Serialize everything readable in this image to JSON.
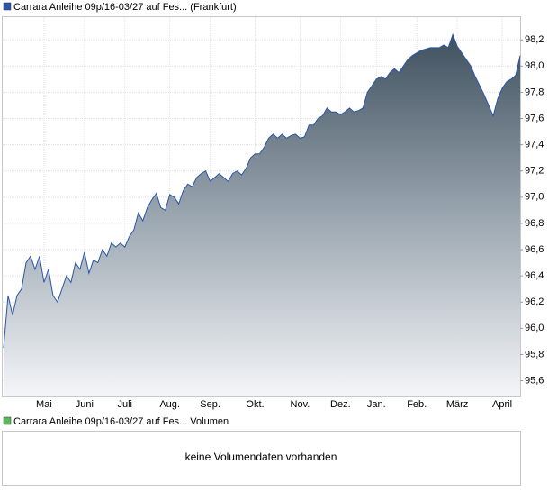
{
  "chart_data": {
    "type": "area",
    "series": [
      {
        "name": "Carrara Anleihe 09p/16-03/27 auf Fes... (Frankfurt)",
        "color": "#2a55a8",
        "values": [
          95.85,
          96.25,
          96.1,
          96.25,
          96.3,
          96.5,
          96.55,
          96.45,
          96.55,
          96.35,
          96.45,
          96.25,
          96.2,
          96.3,
          96.4,
          96.35,
          96.5,
          96.45,
          96.58,
          96.42,
          96.52,
          96.5,
          96.6,
          96.55,
          96.65,
          96.62,
          96.65,
          96.62,
          96.7,
          96.75,
          96.88,
          96.82,
          96.92,
          96.98,
          97.03,
          96.92,
          96.9,
          97.02,
          97.0,
          96.95,
          97.05,
          97.1,
          97.08,
          97.15,
          97.18,
          97.2,
          97.12,
          97.15,
          97.18,
          97.15,
          97.12,
          97.18,
          97.2,
          97.17,
          97.22,
          97.3,
          97.33,
          97.33,
          97.38,
          97.45,
          97.48,
          97.45,
          97.48,
          97.45,
          97.47,
          97.48,
          97.45,
          97.46,
          97.55,
          97.55,
          97.6,
          97.62,
          97.68,
          97.65,
          97.65,
          97.63,
          97.65,
          97.68,
          97.65,
          97.66,
          97.68,
          97.8,
          97.85,
          97.9,
          97.92,
          97.9,
          97.95,
          97.98,
          97.95,
          98.0,
          98.05,
          98.08,
          98.1,
          98.12,
          98.13,
          98.14,
          98.14,
          98.14,
          98.16,
          98.14,
          98.24,
          98.15,
          98.1,
          98.05,
          98.0,
          97.92,
          97.85,
          97.78,
          97.7,
          97.62,
          97.75,
          97.83,
          97.88,
          97.9,
          97.93,
          98.08
        ]
      }
    ],
    "categories": [
      null,
      null,
      null,
      null,
      null,
      null,
      null,
      null,
      null,
      "Mai",
      null,
      null,
      null,
      null,
      null,
      null,
      null,
      null,
      "Juni",
      null,
      null,
      null,
      null,
      null,
      null,
      null,
      null,
      "Juli",
      null,
      null,
      null,
      null,
      null,
      null,
      null,
      null,
      null,
      "Aug.",
      null,
      null,
      null,
      null,
      null,
      null,
      null,
      null,
      "Sep.",
      null,
      null,
      null,
      null,
      null,
      null,
      null,
      null,
      null,
      "Okt.",
      null,
      null,
      null,
      null,
      null,
      null,
      null,
      null,
      null,
      "Nov.",
      null,
      null,
      null,
      null,
      null,
      null,
      null,
      null,
      "Dez.",
      null,
      null,
      null,
      null,
      null,
      null,
      null,
      "Jan.",
      null,
      null,
      null,
      null,
      null,
      null,
      null,
      null,
      "Feb.",
      null,
      null,
      null,
      null,
      null,
      null,
      null,
      null,
      "März",
      null,
      null,
      null,
      null,
      null,
      null,
      null,
      null,
      null,
      "April",
      null,
      null,
      null,
      null
    ],
    "ylim": [
      95.48,
      98.38
    ],
    "yticks": [
      {
        "value": 95.6,
        "label": "95,6"
      },
      {
        "value": 95.8,
        "label": "95,8"
      },
      {
        "value": 96.0,
        "label": "96,0"
      },
      {
        "value": 96.2,
        "label": "96,2"
      },
      {
        "value": 96.4,
        "label": "96,4"
      },
      {
        "value": 96.6,
        "label": "96,6"
      },
      {
        "value": 96.8,
        "label": "96,8"
      },
      {
        "value": 97.0,
        "label": "97,0"
      },
      {
        "value": 97.2,
        "label": "97,2"
      },
      {
        "value": 97.4,
        "label": "97,4"
      },
      {
        "value": 97.6,
        "label": "97,6"
      },
      {
        "value": 97.8,
        "label": "97,8"
      },
      {
        "value": 98.0,
        "label": "98,0"
      },
      {
        "value": 98.2,
        "label": "98,2"
      }
    ],
    "grid": true
  },
  "volume_panel": {
    "legend": "Carrara Anleihe 09p/16-03/27 auf Fes... Volumen",
    "legend_color": "#5cb85c",
    "message": "keine Volumendaten vorhanden"
  }
}
